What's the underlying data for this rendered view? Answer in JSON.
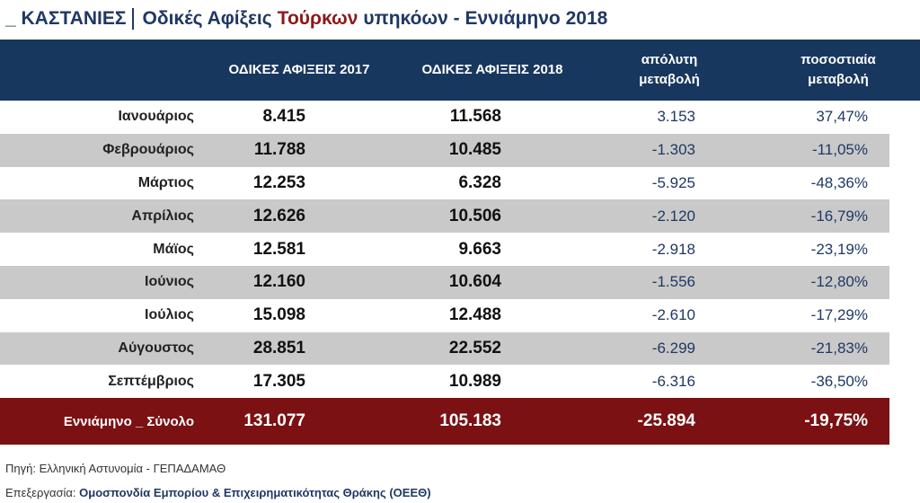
{
  "title": {
    "prefix": "_ ΚΑΣΤΑΝΙΕΣ",
    "part1": "Οδικές Αφίξεις",
    "highlight": "Τούρκων",
    "part2": "υπηκόων - Εννιάμηνο 2018"
  },
  "headers": {
    "arrivals_2017": "ΟΔΙΚΕΣ ΑΦΙΞΕΙΣ 2017",
    "arrivals_2018": "ΟΔΙΚΕΣ ΑΦΙΞΕΙΣ  2018",
    "abs_line1": "απόλυτη",
    "abs_line2": "μεταβολή",
    "pct_line1": "ποσοστιαία",
    "pct_line2": "μεταβολή"
  },
  "rows": [
    {
      "month": "Ιανουάριος",
      "v2017": "8.415",
      "v2018": "11.568",
      "abs": "3.153",
      "pct": "37,47%"
    },
    {
      "month": "Φεβρουάριος",
      "v2017": "11.788",
      "v2018": "10.485",
      "abs": "-1.303",
      "pct": "-11,05%"
    },
    {
      "month": "Μάρτιος",
      "v2017": "12.253",
      "v2018": "6.328",
      "abs": "-5.925",
      "pct": "-48,36%"
    },
    {
      "month": "Απρίλιος",
      "v2017": "12.626",
      "v2018": "10.506",
      "abs": "-2.120",
      "pct": "-16,79%"
    },
    {
      "month": "Μάϊος",
      "v2017": "12.581",
      "v2018": "9.663",
      "abs": "-2.918",
      "pct": "-23,19%"
    },
    {
      "month": "Ιούνιος",
      "v2017": "12.160",
      "v2018": "10.604",
      "abs": "-1.556",
      "pct": "-12,80%"
    },
    {
      "month": "Ιούλιος",
      "v2017": "15.098",
      "v2018": "12.488",
      "abs": "-2.610",
      "pct": "-17,29%"
    },
    {
      "month": "Αύγουστος",
      "v2017": "28.851",
      "v2018": "22.552",
      "abs": "-6.299",
      "pct": "-21,83%"
    },
    {
      "month": "Σεπτέμβριος",
      "v2017": "17.305",
      "v2018": "10.989",
      "abs": "-6.316",
      "pct": "-36,50%"
    }
  ],
  "total": {
    "label": "Εννιάμηνο _ Σύνολο",
    "v2017": "131.077",
    "v2018": "105.183",
    "abs": "-25.894",
    "pct": "-19,75%"
  },
  "footer": {
    "source": "Πηγή: Ελληνική Αστυνομία - ΓΕΠΑΔΑΜΑΘ",
    "credit_label": "Επεξεργασία:",
    "credit_org": "Ομοσπονδία Εμπορίου & Επιχειρηματικότητας Θράκης (ΟΕΕΘ)"
  },
  "colors": {
    "header_bg": "#17375e",
    "total_bg": "#7b1113",
    "row_alt": "#c9c9c9",
    "title_text": "#1f3864",
    "title_highlight": "#8b1a1a"
  }
}
